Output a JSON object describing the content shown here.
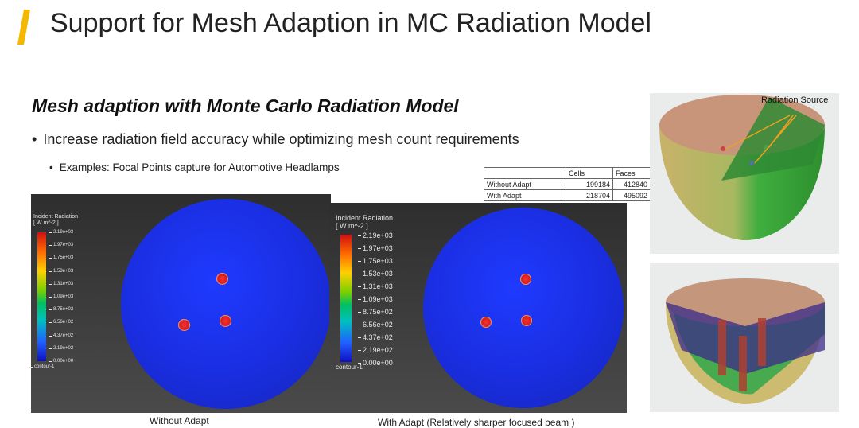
{
  "slide": {
    "title": "Support for Mesh Adaption in MC Radiation Model",
    "subtitle": "Mesh adaption with Monte Carlo Radiation Model",
    "bullet1": "Increase radiation field accuracy while optimizing mesh count requirements",
    "bullet2": "Examples: Focal Points capture for Automotive Headlamps",
    "accent_color": "#f5b800"
  },
  "table": {
    "headers": [
      "",
      "Cells",
      "Faces"
    ],
    "rows": [
      [
        "Without Adapt",
        "199184",
        "412840"
      ],
      [
        "With Adapt",
        "218704",
        "495092"
      ]
    ]
  },
  "left_plot": {
    "legend_title": [
      "Incident Radiation",
      "[ W m^-2 ]"
    ],
    "ticks": [
      "2.19e+03",
      "1.97e+03",
      "1.75e+03",
      "1.53e+03",
      "1.31e+03",
      "1.09e+03",
      "8.75e+02",
      "6.56e+02",
      "4.37e+02",
      "2.19e+02",
      "0.00e+00"
    ],
    "footer": "contour-1",
    "caption": "Without Adapt"
  },
  "right_plot": {
    "legend_title": [
      "Incident Radiation",
      "[ W m^-2 ]"
    ],
    "ticks": [
      "2.19e+03",
      "1.97e+03",
      "1.75e+03",
      "1.53e+03",
      "1.31e+03",
      "1.09e+03",
      "8.75e+02",
      "6.56e+02",
      "4.37e+02",
      "2.19e+02",
      "0.00e+00"
    ],
    "footer": "contour-1",
    "caption": "With Adapt (Relatively sharper focused beam )"
  },
  "side_images": {
    "label": "Radiation Source"
  }
}
